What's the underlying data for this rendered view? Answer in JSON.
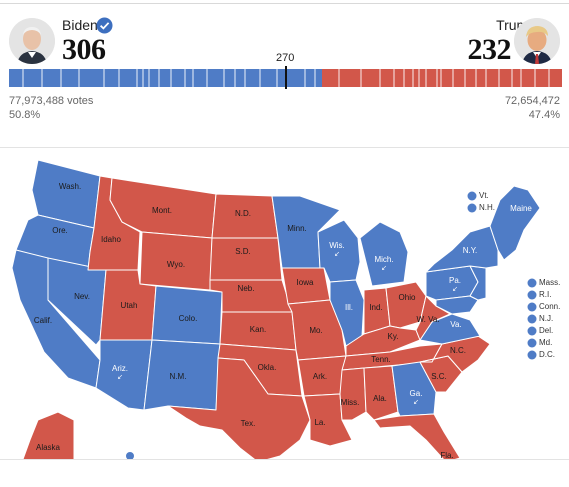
{
  "candidates": {
    "biden": {
      "name": "Biden",
      "electoral_votes": "306",
      "popular_votes": "77,973,488 votes",
      "percent": "50.8%",
      "color": "#4f7cc6",
      "winner": true
    },
    "trump": {
      "name": "Trump",
      "electoral_votes": "232",
      "popular_votes": "72,654,472",
      "percent": "47.4%",
      "color": "#d2574a"
    }
  },
  "threshold_label": "270",
  "map": {
    "states": [
      {
        "id": "wash",
        "label": "Wash.",
        "party": "D"
      },
      {
        "id": "ore",
        "label": "Ore.",
        "party": "D"
      },
      {
        "id": "calif",
        "label": "Calif.",
        "party": "D"
      },
      {
        "id": "nev",
        "label": "Nev.",
        "party": "D"
      },
      {
        "id": "idaho",
        "label": "Idaho",
        "party": "R"
      },
      {
        "id": "mont",
        "label": "Mont.",
        "party": "R"
      },
      {
        "id": "wyo",
        "label": "Wyo.",
        "party": "R"
      },
      {
        "id": "utah",
        "label": "Utah",
        "party": "R"
      },
      {
        "id": "colo",
        "label": "Colo.",
        "party": "D"
      },
      {
        "id": "ariz",
        "label": "Ariz.",
        "party": "D"
      },
      {
        "id": "nm",
        "label": "N.M.",
        "party": "D"
      },
      {
        "id": "nd",
        "label": "N.D.",
        "party": "R"
      },
      {
        "id": "sd",
        "label": "S.D.",
        "party": "R"
      },
      {
        "id": "neb",
        "label": "Neb.",
        "party": "R"
      },
      {
        "id": "kan",
        "label": "Kan.",
        "party": "R"
      },
      {
        "id": "okla",
        "label": "Okla.",
        "party": "R"
      },
      {
        "id": "tex",
        "label": "Tex.",
        "party": "R"
      },
      {
        "id": "minn",
        "label": "Minn.",
        "party": "D"
      },
      {
        "id": "iowa",
        "label": "Iowa",
        "party": "R"
      },
      {
        "id": "mo",
        "label": "Mo.",
        "party": "R"
      },
      {
        "id": "ark",
        "label": "Ark.",
        "party": "R"
      },
      {
        "id": "la",
        "label": "La.",
        "party": "R"
      },
      {
        "id": "wis",
        "label": "Wis.",
        "party": "D",
        "flipped": true
      },
      {
        "id": "ill",
        "label": "Ill.",
        "party": "D"
      },
      {
        "id": "mich",
        "label": "Mich.",
        "party": "D",
        "flipped": true
      },
      {
        "id": "ind",
        "label": "Ind.",
        "party": "R"
      },
      {
        "id": "ohio",
        "label": "Ohio",
        "party": "R"
      },
      {
        "id": "ky",
        "label": "Ky.",
        "party": "R"
      },
      {
        "id": "tenn",
        "label": "Tenn.",
        "party": "R"
      },
      {
        "id": "miss",
        "label": "Miss.",
        "party": "R"
      },
      {
        "id": "ala",
        "label": "Ala.",
        "party": "R"
      },
      {
        "id": "ga",
        "label": "Ga.",
        "party": "D",
        "flipped": true
      },
      {
        "id": "fla",
        "label": "Fla.",
        "party": "R"
      },
      {
        "id": "sc",
        "label": "S.C.",
        "party": "R"
      },
      {
        "id": "nc",
        "label": "N.C.",
        "party": "R"
      },
      {
        "id": "va",
        "label": "Va.",
        "party": "D"
      },
      {
        "id": "wva",
        "label": "W. Va.",
        "party": "R"
      },
      {
        "id": "pa",
        "label": "Pa.",
        "party": "D",
        "flipped": true
      },
      {
        "id": "ny",
        "label": "N.Y.",
        "party": "D"
      },
      {
        "id": "maine",
        "label": "Maine",
        "party": "D"
      },
      {
        "id": "alaska",
        "label": "Alaska",
        "party": "R"
      }
    ],
    "small_states_top": [
      {
        "label": "Vt.",
        "party": "D"
      },
      {
        "label": "N.H.",
        "party": "D"
      }
    ],
    "small_states_right": [
      {
        "label": "Mass.",
        "party": "D"
      },
      {
        "label": "R.I.",
        "party": "D"
      },
      {
        "label": "Conn.",
        "party": "D"
      },
      {
        "label": "N.J.",
        "party": "D"
      },
      {
        "label": "Del.",
        "party": "D"
      },
      {
        "label": "Md.",
        "party": "D"
      },
      {
        "label": "D.C.",
        "party": "D"
      }
    ]
  }
}
